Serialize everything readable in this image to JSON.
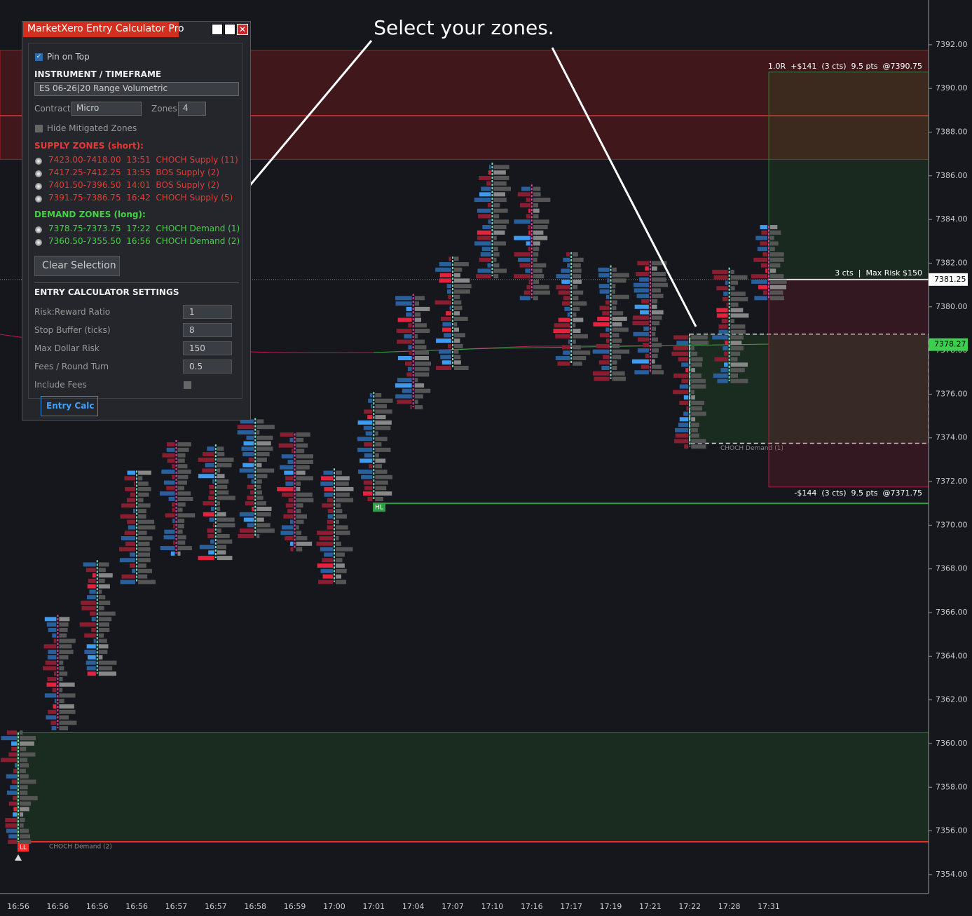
{
  "annotation": "Select your zones.",
  "panel": {
    "title": "MarketXero Entry Calculator Pro",
    "pin": "Pin on Top",
    "instrument_heading": "INSTRUMENT / TIMEFRAME",
    "instrument": "ES 06-26|20 Range Volumetric",
    "contract_label": "Contract:",
    "contract": "Micro",
    "zones_label": "Zones:",
    "zones": "4",
    "hide_mitigated": "Hide Mitigated Zones",
    "supply_heading": "SUPPLY ZONES (short):",
    "supply": [
      "7423.00-7418.00  13:51  CHOCH Supply (11)",
      "7417.25-7412.25  13:55  BOS Supply (2)",
      "7401.50-7396.50  14:01  BOS Supply (2)",
      "7391.75-7386.75  16:42  CHOCH Supply (5)"
    ],
    "demand_heading": "DEMAND ZONES (long):",
    "demand": [
      "7378.75-7373.75  17:22  CHOCH Demand (1)",
      "7360.50-7355.50  16:56  CHOCH Demand (2)"
    ],
    "clear": "Clear Selection",
    "settings_heading": "ENTRY CALCULATOR SETTINGS",
    "settings": [
      {
        "label": "Risk:Reward Ratio",
        "value": "1"
      },
      {
        "label": "Stop Buffer (ticks)",
        "value": "8"
      },
      {
        "label": "Max Dollar Risk",
        "value": "150"
      },
      {
        "label": "Fees / Round Turn",
        "value": "0.5"
      }
    ],
    "include_fees": "Include Fees",
    "entry_calc": "Entry Calc"
  },
  "chart_data": {
    "type": "footprint",
    "categories": [
      "16:56",
      "16:56",
      "16:56",
      "16:56",
      "16:57",
      "16:57",
      "16:58",
      "16:59",
      "17:00",
      "17:01",
      "17:04",
      "17:07",
      "17:10",
      "17:16",
      "17:17",
      "17:19",
      "17:21",
      "17:22",
      "17:28",
      "17:31"
    ],
    "high": [
      7360.5,
      7365.9,
      7368.4,
      7372.5,
      7373.9,
      7373.7,
      7374.9,
      7374.2,
      7372.6,
      7376.1,
      7380.6,
      7382.3,
      7386.6,
      7385.6,
      7382.5,
      7381.9,
      7382.1,
      7378.6,
      7381.8,
      7383.7
    ],
    "low": [
      7355.5,
      7360.7,
      7363.2,
      7367.4,
      7368.7,
      7368.5,
      7369.5,
      7368.9,
      7367.4,
      7371.2,
      7375.4,
      7377.2,
      7381.4,
      7380.4,
      7377.4,
      7376.7,
      7377.0,
      7373.6,
      7376.6,
      7380.4
    ],
    "ylim": [
      7353.13,
      7394.05
    ],
    "yticks": [
      {
        "value": 7354,
        "label": "7354.00"
      },
      {
        "value": 7356,
        "label": "7356.00"
      },
      {
        "value": 7358,
        "label": "7358.00"
      },
      {
        "value": 7360,
        "label": "7360.00"
      },
      {
        "value": 7362,
        "label": "7362.00"
      },
      {
        "value": 7364,
        "label": "7364.00"
      },
      {
        "value": 7366,
        "label": "7366.00"
      },
      {
        "value": 7368,
        "label": "7368.00"
      },
      {
        "value": 7370,
        "label": "7370.00"
      },
      {
        "value": 7372,
        "label": "7372.00"
      },
      {
        "value": 7374,
        "label": "7374.00"
      },
      {
        "value": 7376,
        "label": "7376.00"
      },
      {
        "value": 7378,
        "label": "7378.00"
      },
      {
        "value": 7380,
        "label": "7380.00"
      },
      {
        "value": 7382,
        "label": "7382.00"
      },
      {
        "value": 7384,
        "label": "7384.00"
      },
      {
        "value": 7386,
        "label": "7386.00"
      },
      {
        "value": 7388,
        "label": "7388.00"
      },
      {
        "value": 7390,
        "label": "7390.00"
      },
      {
        "value": 7392,
        "label": "7392.00"
      }
    ],
    "zones": [
      {
        "high": 7391.75,
        "low": 7386.75,
        "color": "#b01c1c"
      },
      {
        "high": 7378.75,
        "low": 7373.75,
        "color": "#2e7d32",
        "label": "CHOCH Demand (1)"
      },
      {
        "high": 7360.5,
        "low": 7355.5,
        "color": "#2e7d32",
        "label": "CHOCH Demand (2)"
      }
    ],
    "supply_line": 7388.75,
    "demand_line": 7355.5,
    "hl_level": 7371,
    "hl_label": "HL",
    "ll_label": "LL",
    "trade": {
      "entry": 7381.25,
      "target": 7390.75,
      "stop": 7371.75,
      "target_label": "1.0R  +$141  (3 cts)  9.5 pts  @7390.75",
      "entry_label": "3 cts  |  Max Risk $150",
      "stop_label": "-$144  (3 cts)  9.5 pts  @7371.75"
    },
    "last_price": 7378.27
  }
}
